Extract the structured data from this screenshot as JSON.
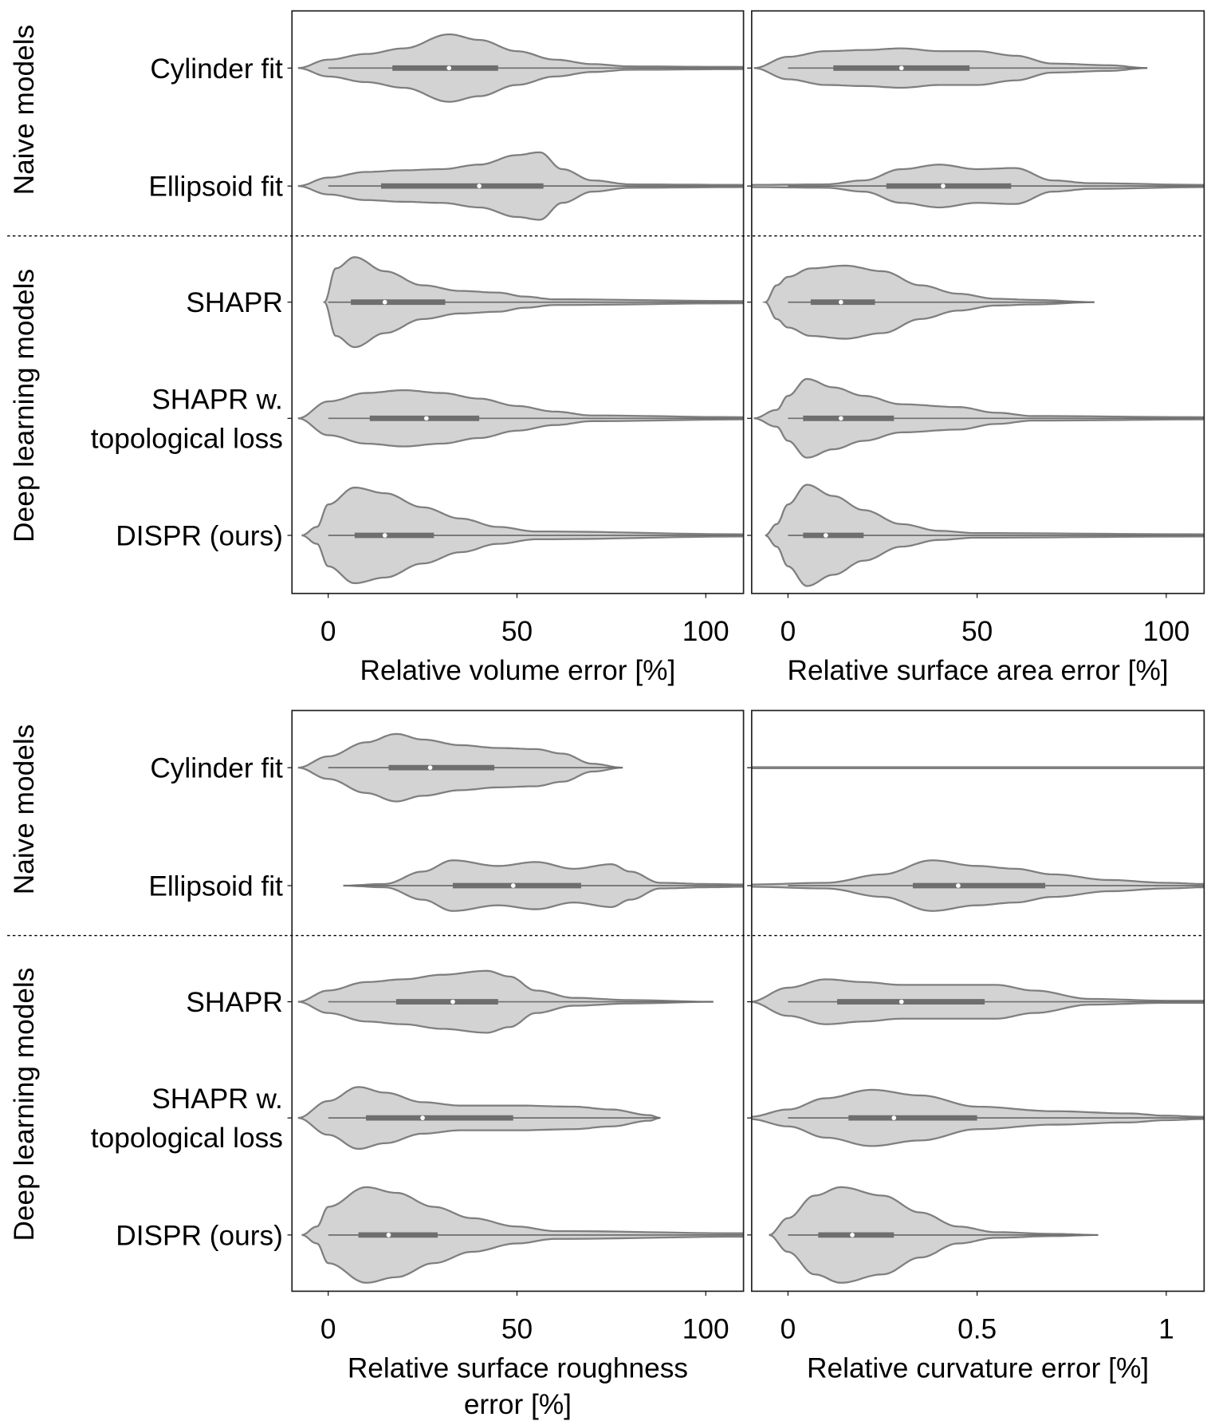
{
  "chart_data": {
    "type": "violin",
    "group_labels": [
      "Naive models",
      "Deep learning models"
    ],
    "categories": [
      "Cylinder fit",
      "Ellipsoid fit",
      "SHAPR",
      "SHAPR w. topological loss",
      "DISPR (ours)"
    ],
    "category_lines": [
      [
        "Cylinder fit"
      ],
      [
        "Ellipsoid fit"
      ],
      [
        "SHAPR"
      ],
      [
        "SHAPR w.",
        "topological loss"
      ],
      [
        "DISPR (ours)"
      ]
    ],
    "panels": [
      {
        "xlabel": [
          "Relative volume error [%]"
        ],
        "xlim": [
          -9.6,
          110
        ],
        "xticks": [
          0,
          50,
          100
        ],
        "xtick_labels": [
          "0",
          "50",
          "100"
        ],
        "violins": [
          {
            "density": [
              [
                -8,
                0
              ],
              [
                0,
                0.15
              ],
              [
                10,
                0.25
              ],
              [
                20,
                0.35
              ],
              [
                32,
                0.6
              ],
              [
                40,
                0.5
              ],
              [
                50,
                0.3
              ],
              [
                60,
                0.15
              ],
              [
                70,
                0.07
              ],
              [
                80,
                0.03
              ],
              [
                110,
                0.02
              ]
            ],
            "q1": 17,
            "median": 32,
            "q3": 45
          },
          {
            "density": [
              [
                -8,
                0
              ],
              [
                0,
                0.15
              ],
              [
                10,
                0.25
              ],
              [
                20,
                0.28
              ],
              [
                30,
                0.3
              ],
              [
                40,
                0.38
              ],
              [
                50,
                0.55
              ],
              [
                56,
                0.6
              ],
              [
                62,
                0.3
              ],
              [
                70,
                0.1
              ],
              [
                80,
                0.03
              ],
              [
                110,
                0.02
              ]
            ],
            "q1": 14,
            "median": 40,
            "q3": 57
          },
          {
            "density": [
              [
                -1,
                0
              ],
              [
                2,
                0.6
              ],
              [
                7,
                0.8
              ],
              [
                15,
                0.55
              ],
              [
                25,
                0.3
              ],
              [
                35,
                0.2
              ],
              [
                45,
                0.17
              ],
              [
                52,
                0.1
              ],
              [
                60,
                0.05
              ],
              [
                110,
                0.02
              ]
            ],
            "q1": 6,
            "median": 15,
            "q3": 31
          },
          {
            "density": [
              [
                -8,
                0
              ],
              [
                0,
                0.3
              ],
              [
                10,
                0.45
              ],
              [
                20,
                0.5
              ],
              [
                30,
                0.45
              ],
              [
                40,
                0.35
              ],
              [
                50,
                0.22
              ],
              [
                60,
                0.12
              ],
              [
                70,
                0.05
              ],
              [
                110,
                0.02
              ]
            ],
            "q1": 11,
            "median": 26,
            "q3": 40
          },
          {
            "density": [
              [
                -7,
                0
              ],
              [
                -3,
                0.15
              ],
              [
                0,
                0.55
              ],
              [
                7,
                0.85
              ],
              [
                15,
                0.75
              ],
              [
                25,
                0.5
              ],
              [
                35,
                0.3
              ],
              [
                45,
                0.15
              ],
              [
                55,
                0.07
              ],
              [
                110,
                0.02
              ]
            ],
            "q1": 7,
            "median": 15,
            "q3": 28
          }
        ]
      },
      {
        "xlabel": [
          "Relative surface area error [%]"
        ],
        "xlim": [
          -9.6,
          110
        ],
        "xticks": [
          0,
          50,
          100
        ],
        "xtick_labels": [
          "0",
          "50",
          "100"
        ],
        "violins": [
          {
            "density": [
              [
                -9,
                0
              ],
              [
                0,
                0.2
              ],
              [
                10,
                0.3
              ],
              [
                20,
                0.32
              ],
              [
                30,
                0.35
              ],
              [
                40,
                0.3
              ],
              [
                50,
                0.3
              ],
              [
                60,
                0.22
              ],
              [
                70,
                0.08
              ],
              [
                85,
                0.05
              ],
              [
                95,
                0
              ]
            ],
            "q1": 12,
            "median": 30,
            "q3": 48
          },
          {
            "density": [
              [
                -10,
                0.02
              ],
              [
                10,
                0.03
              ],
              [
                20,
                0.1
              ],
              [
                30,
                0.3
              ],
              [
                40,
                0.38
              ],
              [
                50,
                0.3
              ],
              [
                60,
                0.32
              ],
              [
                70,
                0.1
              ],
              [
                80,
                0.05
              ],
              [
                110,
                0.02
              ]
            ],
            "q1": 26,
            "median": 41,
            "q3": 59
          },
          {
            "density": [
              [
                -6,
                0
              ],
              [
                -3,
                0.3
              ],
              [
                0,
                0.45
              ],
              [
                6,
                0.6
              ],
              [
                15,
                0.65
              ],
              [
                25,
                0.55
              ],
              [
                35,
                0.3
              ],
              [
                45,
                0.15
              ],
              [
                55,
                0.06
              ],
              [
                65,
                0.04
              ],
              [
                81,
                0
              ]
            ],
            "q1": 6,
            "median": 14,
            "q3": 23
          },
          {
            "density": [
              [
                -9,
                0
              ],
              [
                -3,
                0.15
              ],
              [
                0,
                0.4
              ],
              [
                5,
                0.7
              ],
              [
                12,
                0.55
              ],
              [
                20,
                0.4
              ],
              [
                30,
                0.25
              ],
              [
                45,
                0.2
              ],
              [
                55,
                0.1
              ],
              [
                65,
                0.04
              ],
              [
                110,
                0.02
              ]
            ],
            "q1": 4,
            "median": 14,
            "q3": 28
          },
          {
            "density": [
              [
                -6,
                0
              ],
              [
                -3,
                0.2
              ],
              [
                0,
                0.55
              ],
              [
                5,
                0.9
              ],
              [
                12,
                0.7
              ],
              [
                20,
                0.45
              ],
              [
                30,
                0.2
              ],
              [
                40,
                0.08
              ],
              [
                50,
                0.04
              ],
              [
                110,
                0.02
              ]
            ],
            "q1": 4,
            "median": 10,
            "q3": 20
          }
        ]
      },
      {
        "xlabel": [
          "Relative surface roughness",
          "error [%]"
        ],
        "xlim": [
          -9.6,
          110
        ],
        "xticks": [
          0,
          50,
          100
        ],
        "xtick_labels": [
          "0",
          "50",
          "100"
        ],
        "violins": [
          {
            "density": [
              [
                -8,
                0
              ],
              [
                0,
                0.2
              ],
              [
                10,
                0.45
              ],
              [
                18,
                0.6
              ],
              [
                25,
                0.5
              ],
              [
                35,
                0.4
              ],
              [
                45,
                0.35
              ],
              [
                55,
                0.33
              ],
              [
                62,
                0.25
              ],
              [
                70,
                0.07
              ],
              [
                78,
                0
              ]
            ],
            "q1": 16,
            "median": 27,
            "q3": 44
          },
          {
            "density": [
              [
                4,
                0
              ],
              [
                15,
                0.03
              ],
              [
                25,
                0.25
              ],
              [
                33,
                0.45
              ],
              [
                45,
                0.35
              ],
              [
                55,
                0.42
              ],
              [
                65,
                0.3
              ],
              [
                75,
                0.38
              ],
              [
                80,
                0.25
              ],
              [
                88,
                0.05
              ],
              [
                100,
                0.03
              ],
              [
                110,
                0.02
              ]
            ],
            "q1": 33,
            "median": 49,
            "q3": 67
          },
          {
            "density": [
              [
                -8,
                0
              ],
              [
                0,
                0.2
              ],
              [
                10,
                0.35
              ],
              [
                20,
                0.4
              ],
              [
                30,
                0.48
              ],
              [
                42,
                0.55
              ],
              [
                48,
                0.45
              ],
              [
                55,
                0.2
              ],
              [
                65,
                0.07
              ],
              [
                80,
                0.03
              ],
              [
                102,
                0
              ]
            ],
            "q1": 18,
            "median": 33,
            "q3": 45
          },
          {
            "density": [
              [
                -8,
                0
              ],
              [
                0,
                0.3
              ],
              [
                8,
                0.55
              ],
              [
                15,
                0.45
              ],
              [
                25,
                0.28
              ],
              [
                35,
                0.22
              ],
              [
                50,
                0.22
              ],
              [
                65,
                0.2
              ],
              [
                75,
                0.15
              ],
              [
                85,
                0.05
              ],
              [
                88,
                0
              ]
            ],
            "q1": 10,
            "median": 25,
            "q3": 49
          },
          {
            "density": [
              [
                -7,
                0
              ],
              [
                -3,
                0.15
              ],
              [
                0,
                0.5
              ],
              [
                10,
                0.85
              ],
              [
                18,
                0.75
              ],
              [
                28,
                0.5
              ],
              [
                38,
                0.3
              ],
              [
                50,
                0.15
              ],
              [
                60,
                0.07
              ],
              [
                110,
                0.03
              ]
            ],
            "q1": 8,
            "median": 16,
            "q3": 29
          }
        ]
      },
      {
        "xlabel": [
          "Relative curvature error [%]"
        ],
        "xlim": [
          -0.096,
          1.1
        ],
        "xticks": [
          0,
          0.5,
          1
        ],
        "xtick_labels": [
          "0",
          "0.5",
          "1"
        ],
        "violins": [
          {
            "density": [
              [
                -0.1,
                0.01
              ],
              [
                1.1,
                0.01
              ]
            ],
            "q1": null,
            "median": null,
            "q3": null
          },
          {
            "density": [
              [
                -0.1,
                0.02
              ],
              [
                0.1,
                0.05
              ],
              [
                0.25,
                0.2
              ],
              [
                0.38,
                0.45
              ],
              [
                0.5,
                0.35
              ],
              [
                0.6,
                0.3
              ],
              [
                0.7,
                0.2
              ],
              [
                0.85,
                0.1
              ],
              [
                1.0,
                0.05
              ],
              [
                1.1,
                0.03
              ]
            ],
            "q1": 0.33,
            "median": 0.45,
            "q3": 0.68
          },
          {
            "density": [
              [
                -0.1,
                0
              ],
              [
                0,
                0.25
              ],
              [
                0.1,
                0.4
              ],
              [
                0.2,
                0.35
              ],
              [
                0.3,
                0.3
              ],
              [
                0.45,
                0.3
              ],
              [
                0.55,
                0.3
              ],
              [
                0.65,
                0.2
              ],
              [
                0.8,
                0.05
              ],
              [
                1.0,
                0.02
              ],
              [
                1.1,
                0.02
              ]
            ],
            "q1": 0.13,
            "median": 0.3,
            "q3": 0.52
          },
          {
            "density": [
              [
                -0.1,
                0.02
              ],
              [
                0,
                0.15
              ],
              [
                0.1,
                0.35
              ],
              [
                0.22,
                0.5
              ],
              [
                0.35,
                0.4
              ],
              [
                0.5,
                0.2
              ],
              [
                0.7,
                0.12
              ],
              [
                0.9,
                0.08
              ],
              [
                1.0,
                0.04
              ],
              [
                1.1,
                0.02
              ]
            ],
            "q1": 0.16,
            "median": 0.28,
            "q3": 0.5
          },
          {
            "density": [
              [
                -0.05,
                0
              ],
              [
                0,
                0.3
              ],
              [
                0.07,
                0.7
              ],
              [
                0.14,
                0.85
              ],
              [
                0.25,
                0.7
              ],
              [
                0.35,
                0.4
              ],
              [
                0.45,
                0.15
              ],
              [
                0.55,
                0.05
              ],
              [
                0.7,
                0.02
              ],
              [
                0.82,
                0
              ]
            ],
            "q1": 0.08,
            "median": 0.17,
            "q3": 0.28
          }
        ]
      }
    ],
    "colors": {
      "fill": "#d3d3d3",
      "edge": "#7f7f7f",
      "box": "#6e6e6e"
    }
  }
}
